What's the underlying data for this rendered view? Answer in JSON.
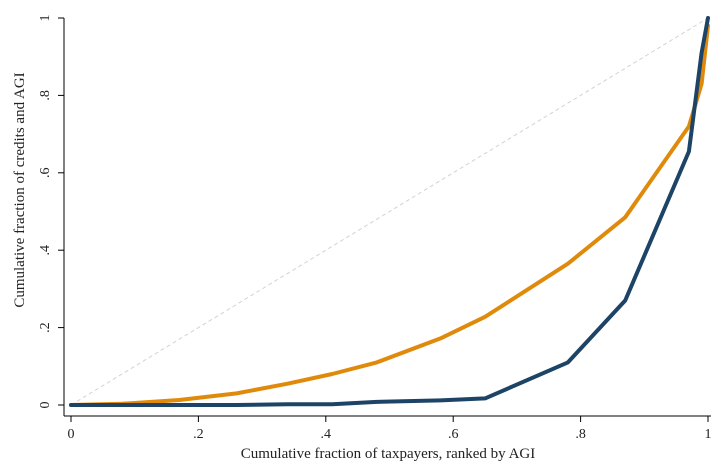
{
  "chart_data": {
    "type": "line",
    "title": "",
    "xlabel": "Cumulative fraction of taxpayers, ranked by AGI",
    "ylabel": "Cumulative fraction of credits and AGI",
    "xlim": [
      0,
      1
    ],
    "ylim": [
      0,
      1
    ],
    "grid": false,
    "legend": "none",
    "x_ticks": [
      0,
      0.2,
      0.4,
      0.6,
      0.8,
      1
    ],
    "x_tick_labels": [
      "0",
      ".2",
      ".4",
      ".6",
      ".8",
      "1"
    ],
    "y_ticks": [
      0,
      0.2,
      0.4,
      0.6,
      0.8,
      1
    ],
    "y_tick_labels": [
      "0",
      ".2",
      ".4",
      ".6",
      ".8",
      "1"
    ],
    "reference_line": {
      "x": [
        0,
        1
      ],
      "y": [
        0,
        1
      ],
      "color": "#d3d3d3",
      "dashed": true
    },
    "series": [
      {
        "color": "#e08a0b",
        "x": [
          0,
          0.08,
          0.17,
          0.26,
          0.34,
          0.41,
          0.48,
          0.58,
          0.65,
          0.78,
          0.87,
          0.97,
          0.99,
          1.0
        ],
        "y": [
          0,
          0.003,
          0.013,
          0.03,
          0.055,
          0.08,
          0.11,
          0.172,
          0.228,
          0.365,
          0.485,
          0.72,
          0.83,
          0.98
        ]
      },
      {
        "color": "#1d4466",
        "x": [
          0,
          0.1,
          0.26,
          0.34,
          0.41,
          0.48,
          0.58,
          0.65,
          0.78,
          0.87,
          0.97,
          0.99,
          1.0
        ],
        "y": [
          0,
          0.0,
          0.0,
          0.002,
          0.002,
          0.008,
          0.012,
          0.017,
          0.11,
          0.27,
          0.655,
          0.91,
          1.0
        ]
      }
    ]
  }
}
